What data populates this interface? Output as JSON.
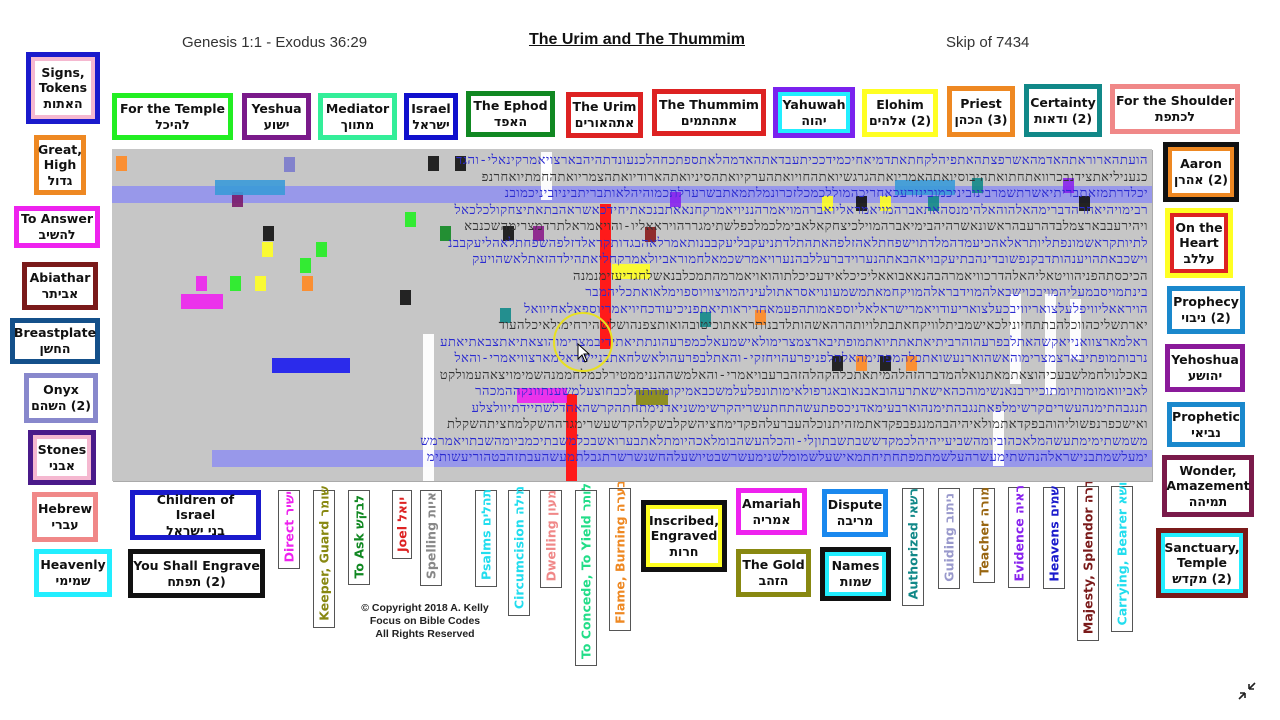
{
  "header": {
    "range": "Genesis 1:1 - Exodus 36:29",
    "title": "The Urim and The Thummim",
    "skip": "Skip of 7434"
  },
  "top_boxes": [
    {
      "en": "For the Temple",
      "he": "להיכל",
      "border": "#22ee22"
    },
    {
      "en": "Yeshua",
      "he": "ישוע",
      "border": "#7a1a8a"
    },
    {
      "en": "Mediator",
      "he": "מתווך",
      "border": "#33ee99"
    },
    {
      "en": "Israel",
      "he": "ישראל",
      "border": "#1010cc"
    },
    {
      "en": "The Ephod",
      "he": "האפד",
      "border": "#118822"
    },
    {
      "en": "The Urim",
      "he": "אתהאורים",
      "border": "#dd2222"
    },
    {
      "en": "The Thummim",
      "he": "אתהתמים",
      "border": "#dd2222"
    },
    {
      "en": "Yahuwah",
      "he": "יהוה",
      "border": "#7a22ee",
      "inner": "#22eeff"
    },
    {
      "en": "Elohim",
      "he": "(2) אלהים",
      "border": "#ffff22"
    },
    {
      "en": "Priest",
      "he": "(3) הכהן",
      "border": "#ee8822"
    },
    {
      "en": "Certainty",
      "he": "(2)  ודאות",
      "border": "#118888"
    },
    {
      "en": "For the Shoulder",
      "he": "לכתפת",
      "border": "#f08888"
    }
  ],
  "left_boxes": [
    {
      "en": "Signs,\nTokens",
      "he": "האתות",
      "border": "#1a1acc",
      "inner": "#f5b8d0"
    },
    {
      "en": "Great,\nHigh",
      "he": "גדול",
      "border": "#ee8822"
    },
    {
      "en": "To Answer",
      "he": "להשיב",
      "border": "#ee22ee"
    },
    {
      "en": "Abiathar",
      "he": "אביתר",
      "border": "#7a1a1a"
    },
    {
      "en": "Breastplate",
      "he": "החשן",
      "border": "#14508a"
    },
    {
      "en": "Onyx",
      "he": "(2) השהם",
      "border": "#8888cc"
    },
    {
      "en": "Stones",
      "he": "אבני",
      "border": "#4a1a8a",
      "inner": "#f5b8d0"
    },
    {
      "en": "Hebrew",
      "he": "עברי",
      "border": "#f08888"
    },
    {
      "en": "Heavenly",
      "he": "שמימי",
      "border": "#22eeff"
    }
  ],
  "right_boxes": [
    {
      "en": "Aaron",
      "he": "(2) אהרן",
      "border": "#111111",
      "inner": "#ee8822"
    },
    {
      "en": "On the\nHeart",
      "he": "עללב",
      "border": "#ffff22",
      "inner": "#dd2222"
    },
    {
      "en": "Prophecy",
      "he": "(2) ניבוי",
      "border": "#1a88cc"
    },
    {
      "en": "Yehoshua",
      "he": "יהושע",
      "border": "#8a1a9a"
    },
    {
      "en": "Prophetic",
      "he": "נביאי",
      "border": "#1a88cc"
    },
    {
      "en": "Wonder,\nAmazement",
      "he": "תמיהה",
      "border": "#7a1a4a"
    },
    {
      "en": "Sanctuary,\nTemple",
      "he": "(2) מקדש",
      "border": "#7a1a1a",
      "inner": "#22eeff"
    }
  ],
  "bottom_boxes": [
    {
      "en": "Children of Israel",
      "he": "בני ישראל",
      "border": "#1a1acc"
    },
    {
      "en": "You Shall Engrave",
      "he": "(2) תפתח",
      "border": "#111111"
    },
    {
      "en": "Inscribed,\nEngraved",
      "he": "חרות",
      "border": "#111111",
      "inner": "#ffff22"
    },
    {
      "en": "Amariah",
      "he": "אמריה",
      "border": "#ee22ee"
    },
    {
      "en": "Dispute",
      "he": "מריבה",
      "border": "#1a88ee"
    },
    {
      "en": "The Gold",
      "he": "הזהב",
      "border": "#888811"
    },
    {
      "en": "Names",
      "he": "שמות",
      "border": "#111111",
      "inner": "#22eeff"
    }
  ],
  "vertical_labels": [
    {
      "text": "Direct  ישיר",
      "color": "#ee22ee"
    },
    {
      "text": "Keeper, Guard  שומר",
      "color": "#888811"
    },
    {
      "text": "To Ask  לבקש",
      "color": "#118822"
    },
    {
      "text": "Joel  יואל",
      "color": "#dd2222"
    },
    {
      "text": "Spelling  איות",
      "color": "#888888"
    },
    {
      "text": "Psalms  תהלים",
      "color": "#22ddee"
    },
    {
      "text": "Circumcision  מילה",
      "color": "#22ddee"
    },
    {
      "text": "Dwelling  מעון",
      "color": "#f08888"
    },
    {
      "text": "To Concede, To Yield  לותר",
      "color": "#22dd88"
    },
    {
      "text": "Flame, Burning  בערה",
      "color": "#ee8822"
    },
    {
      "text": "Authorized  רשאי",
      "color": "#118888"
    },
    {
      "text": "Guiding  ניתוב",
      "color": "#9999cc"
    },
    {
      "text": "Teacher  מורה",
      "color": "#996611"
    },
    {
      "text": "Evidence  ראיה",
      "color": "#8822ee"
    },
    {
      "text": "Heavens  שמים",
      "color": "#1a1acc"
    },
    {
      "text": "Majesty, Splendor  הדרה",
      "color": "#7a1a1a"
    },
    {
      "text": "Carrying, Bearer  נושא",
      "color": "#22ddee"
    }
  ],
  "grid": {
    "rows": [
      "הועתהארוראתהאדמהאשרפצתהאתפיהלקחתאתדמיאחיכמידככיתעבדאתהאדמהלאתספתכחהלכנעונדתהיהבארצויאמרקינאלי-והגד",
      "כנעניליאתצידנבכרוואתחתואתהיבוסיואתהאמריואתהגרגשיואתהחויואתהערקיואתהסיניואתהארודיואתהצמריואתהחמתיואחרנפ",
      "יכלדרתמזאתבריתיאשרתשמרבינוביניכמובינזרעכאחריכהמוללכמכלזכרונמלתמאתבשרערלתכמוהיהלאותבריתביניוביניכמובנ",
      "רבימויהיאחרהדברימהאלהוהאלהימנסהאתאברהמויאמראליואברהמויאמרהנניויאמרקחנאאתבנכאתיחידכאשראהבתאתיצחקולכלכאל",
      "ויהירעבבארצמלבדהרעבהראשונאשרהיהבימיאברהמוילכיצחקאלאבימלכמלכפלשתימגררהויראאליו-והויאמראלתרדמצרימהשכנבא",
      "לתיותקראשמונפתליותראלאהכיעמדהמלדתוישפחתלאהזלפהאתהתלדתניעקבליעקבבנותאמרלאהבגדותקראלדזלפהשפחתלאהליעקבבנ",
      "וישכבאתהויענהותדבקנפשובדינהבתיעקבויאהבאתהנערוידברעללבהנערויאמרשכמאלחמוראביולאמרקחליאתהילדהזאתלאשהויעק",
      "הכיכסתהפניהוויטאליהאלהדרכוויאמרהבהנאאבואאליכיכלאידעכיכלתוהואויאמרמהתמכלבנאשלחגדיעזימנמנה",
      "בינתמויסבמעליהמויבכוישבאלהמוידבראלהמויקחמאתמשמעונויאסראתולעיניהמויצוויוספוימלאואתכליהמבר",
      "הויראאליוויפלעלצואריוויבכעלצואריעודויאמרישראלאליוספאמותהפעמאחריראותיאתפניכיעודכחיויאמריוספאלאחיוואל",
      "יארתשליכהווכלהבתתחיונילכאישמביתלוויקחאתבתלויותהרהאשהותלדבנותראאתוכיטובהואותצפנהושלשהירחימולאיכלהעוד",
      "ראלמארצוואנייאקשהאתלבפרעהוהרביתיאתאתתיואתמופתיבארצמצרימולאישמעאלכמפרעהונתתיאתידיבמצרימוהוצאתיאתצבאתיאתע",
      "נרבותמופתיבארצמצרימוהאשהוארנעשואתכלהמפתימהאלהלפניפרעהויחזקי-והאתלבפרעהולאשלחאתבניישראלמארצוויאמרי-והאל",
      "באכלנולחמלשבעכיהוצאתמאתנואלהמדברהזהלהמיתאתכלהקהלהזהברעבויאמרי-והאלמשההנניממטירלכמלחממנהשמימויצאהעמולקט",
      "לאביוואמומותיומתוכיירבנאנשימוהכהאישאתרעהובאבנאובאגרפולאימותונפלעלמשכבאמיקומוהתהלכבחוצעלמשענתוונקההמכהר",
      "תנגבהתימנהעשריםקרשימלפאתנגבהתימנהוארבעימאדניכספתעשהתחתעשריהקרשימשניאדנימתחתהקרשהאחדלשתיידתיוולצלע",
      "ואישכפרנפשוליהוהבפקדאתמולאיהיהבהמנגפבפקדאתמזהיתנוכלהעברעלהפקדימחציהשקלבשקלהקדשעשרימגרההשקלמחציתהשקלת",
      "משמשתימימתעשהמלאכהוביומהשביעייהיהלכמקדששבתשבתוןלי-והכלהעשהבומלאכהיומתלאתבערואשבכלמשבתיכמביומהשבתויאמרמש",
      "ימעלשמתבנישראלהנהשתימעשרהעלשמתמפתחתיחתמאישעלשמומלשנימעשרשבטיושעלהחשנשרשרתגבלתמעשהעבתזהבטהוריעשותימ"
    ],
    "colors": {
      "background": "#c6c6c6",
      "dark_letter": "#333333",
      "blue_letter": "#2a2ad0",
      "band": "#8f8ff0"
    }
  },
  "copyright": {
    "line1": "© Copyright 2018  A. Kelly",
    "line2": "Focus on Bible Codes",
    "line3": "All Rights Reserved"
  },
  "icons": {
    "collapse": "collapse-icon"
  }
}
